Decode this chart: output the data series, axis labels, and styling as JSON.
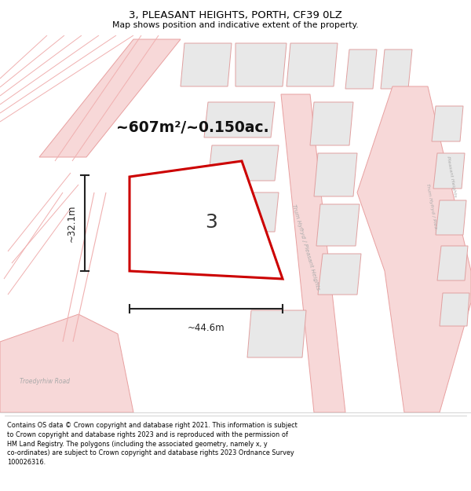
{
  "title": "3, PLEASANT HEIGHTS, PORTH, CF39 0LZ",
  "subtitle": "Map shows position and indicative extent of the property.",
  "area_label": "~607m²/~0.150ac.",
  "plot_number": "3",
  "dim_width": "~44.6m",
  "dim_height": "~32.1m",
  "footer": "Contains OS data © Crown copyright and database right 2021. This information is subject\nto Crown copyright and database rights 2023 and is reproduced with the permission of\nHM Land Registry. The polygons (including the associated geometry, namely x, y\nco-ordinates) are subject to Crown copyright and database rights 2023 Ordnance Survey\n100026316.",
  "map_bg": "#ffffff",
  "plot_fill": "#ffffff",
  "plot_color": "#cc0000",
  "road_fill": "#f7d8d8",
  "road_edge": "#e8a0a0",
  "building_fill": "#e8e8e8",
  "building_edge": "#e0a0a0",
  "road_line": "#f0b0b0",
  "label_color": "#b0b0b0",
  "dim_color": "#222222",
  "area_color": "#111111"
}
